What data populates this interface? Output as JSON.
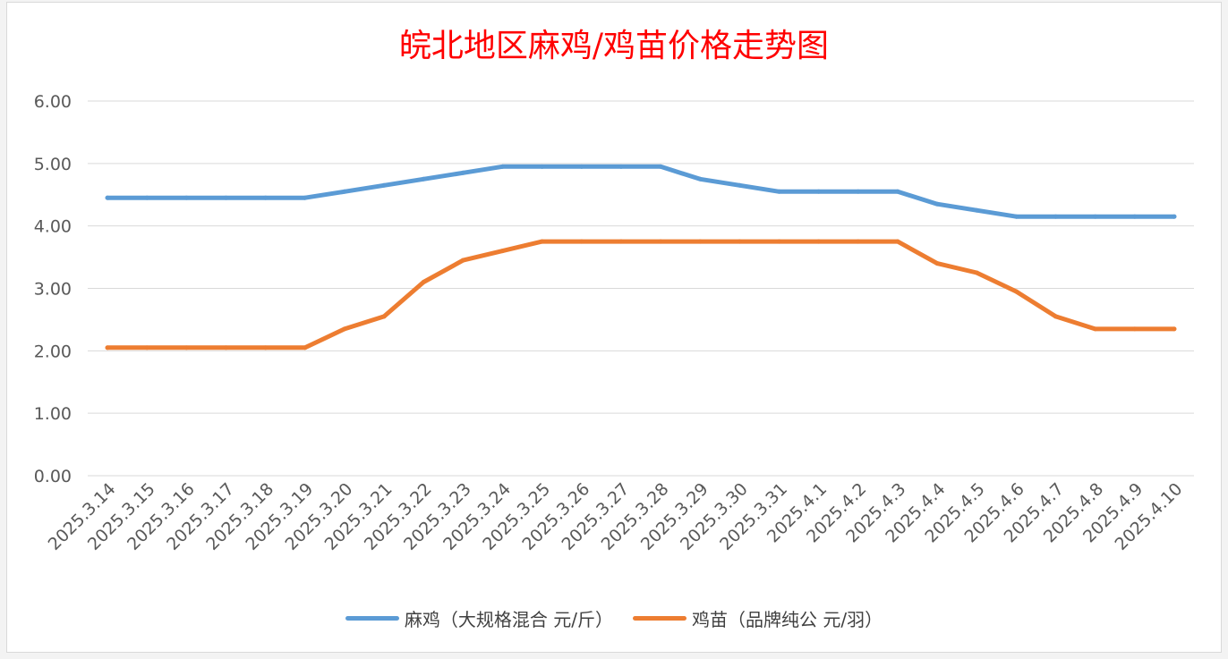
{
  "chart_data": {
    "type": "line",
    "title": "皖北地区麻鸡/鸡苗价格走势图",
    "categories": [
      "2025.3.14",
      "2025.3.15",
      "2025.3.16",
      "2025.3.17",
      "2025.3.18",
      "2025.3.19",
      "2025.3.20",
      "2025.3.21",
      "2025.3.22",
      "2025.3.23",
      "2025.3.24",
      "2025.3.25",
      "2025.3.26",
      "2025.3.27",
      "2025.3.28",
      "2025.3.29",
      "2025.3.30",
      "2025.3.31",
      "2025.4.1",
      "2025.4.2",
      "2025.4.3",
      "2025.4.4",
      "2025.4.5",
      "2025.4.6",
      "2025.4.7",
      "2025.4.8",
      "2025.4.9",
      "2025.4.10"
    ],
    "series": [
      {
        "name": "麻鸡（大规格混合 元/斤）",
        "color": "#5b9bd5",
        "values": [
          4.45,
          4.45,
          4.45,
          4.45,
          4.45,
          4.45,
          4.55,
          4.65,
          4.75,
          4.85,
          4.95,
          4.95,
          4.95,
          4.95,
          4.95,
          4.75,
          4.65,
          4.55,
          4.55,
          4.55,
          4.55,
          4.35,
          4.25,
          4.15,
          4.15,
          4.15,
          4.15,
          4.15
        ]
      },
      {
        "name": "鸡苗（品牌纯公 元/羽）",
        "color": "#ed7d31",
        "values": [
          2.05,
          2.05,
          2.05,
          2.05,
          2.05,
          2.05,
          2.35,
          2.55,
          3.1,
          3.45,
          3.6,
          3.75,
          3.75,
          3.75,
          3.75,
          3.75,
          3.75,
          3.75,
          3.75,
          3.75,
          3.75,
          3.4,
          3.25,
          2.95,
          2.55,
          2.35,
          2.35,
          2.35
        ]
      }
    ],
    "yticks": [
      "0.00",
      "1.00",
      "2.00",
      "3.00",
      "4.00",
      "5.00",
      "6.00"
    ],
    "ylim": [
      0,
      6
    ],
    "grid": true,
    "legend_position": "bottom",
    "gridline_color": "#d9d9d9",
    "tick_label_color": "#595959"
  }
}
